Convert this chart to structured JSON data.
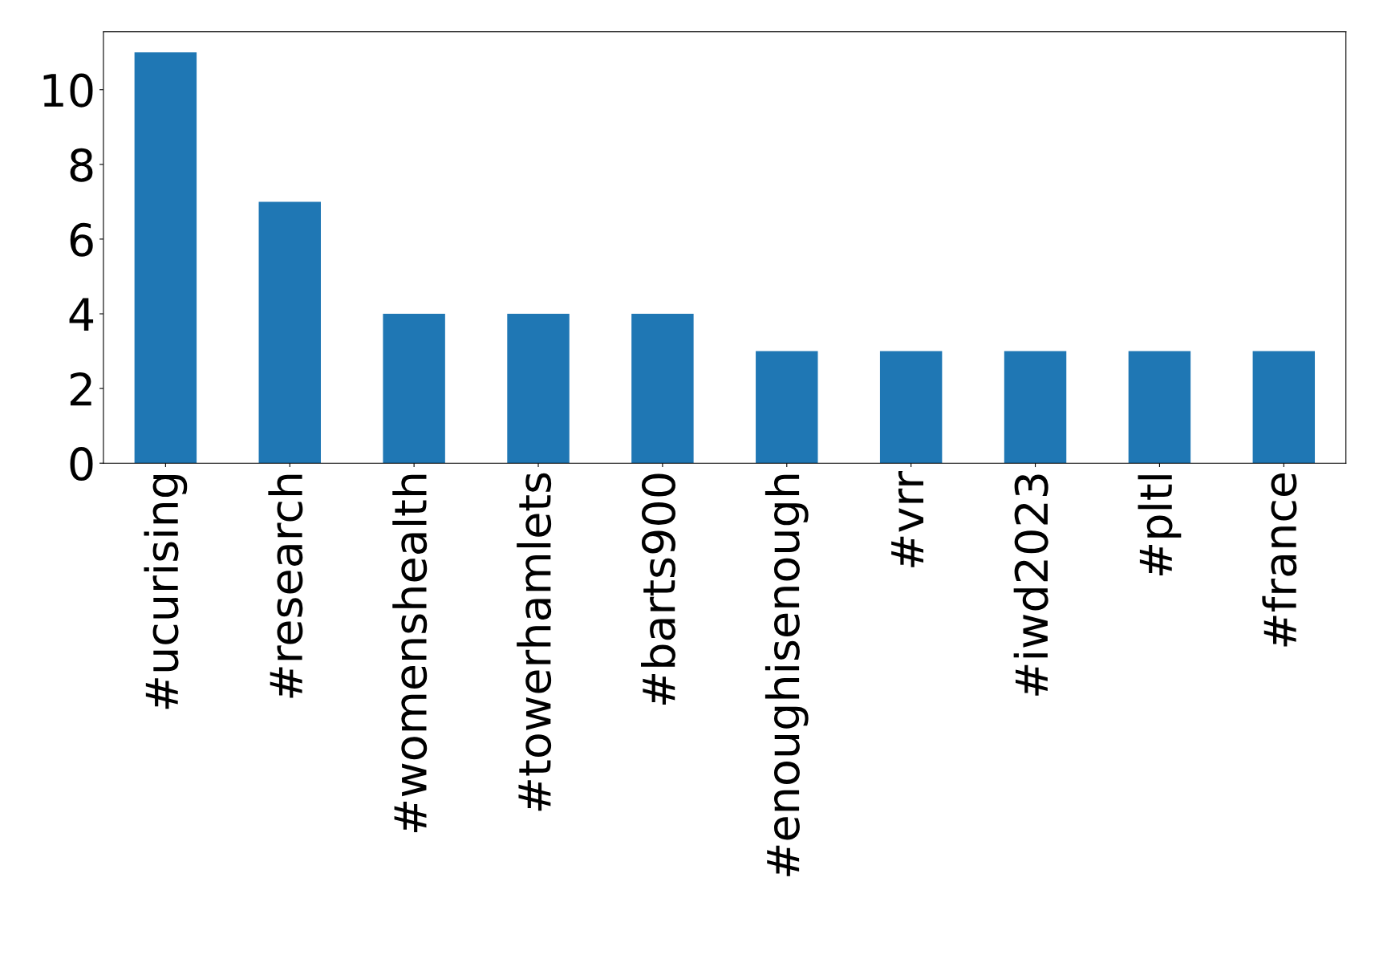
{
  "chart_data": {
    "type": "bar",
    "categories": [
      "#ucurising",
      "#research",
      "#womenshealth",
      "#towerhamlets",
      "#barts900",
      "#enoughisenough",
      "#vrr",
      "#iwd2023",
      "#pltl",
      "#france"
    ],
    "values": [
      11,
      7,
      4,
      4,
      4,
      3,
      3,
      3,
      3,
      3
    ],
    "color": "#1f77b4",
    "ylim": [
      0,
      11.55
    ],
    "yticks": [
      0,
      2,
      4,
      6,
      8,
      10
    ],
    "grid": false,
    "legend": false
  }
}
